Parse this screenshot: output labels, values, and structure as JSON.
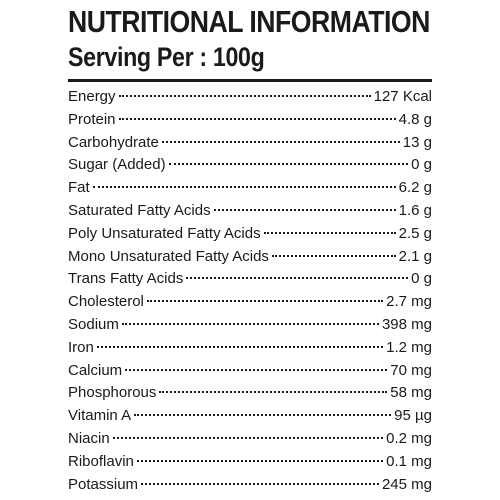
{
  "header": {
    "title": "NUTRITIONAL INFORMATION",
    "serving": "Serving Per : 100g"
  },
  "nutrients": [
    {
      "label": "Energy",
      "value": "127 Kcal"
    },
    {
      "label": "Protein",
      "value": "4.8 g"
    },
    {
      "label": "Carbohydrate",
      "value": "13 g"
    },
    {
      "label": "Sugar (Added)",
      "value": "0 g"
    },
    {
      "label": "Fat",
      "value": "6.2 g"
    },
    {
      "label": "Saturated Fatty Acids",
      "value": "1.6 g"
    },
    {
      "label": "Poly Unsaturated Fatty Acids",
      "value": "2.5 g"
    },
    {
      "label": "Mono Unsaturated Fatty Acids",
      "value": "2.1 g"
    },
    {
      "label": "Trans Fatty Acids",
      "value": "0 g"
    },
    {
      "label": "Cholesterol",
      "value": "2.7 mg"
    },
    {
      "label": "Sodium",
      "value": "398 mg"
    },
    {
      "label": "Iron",
      "value": "1.2 mg"
    },
    {
      "label": "Calcium",
      "value": "70 mg"
    },
    {
      "label": "Phosphorous",
      "value": "58 mg"
    },
    {
      "label": "Vitamin A",
      "value": "95 µg"
    },
    {
      "label": "Niacin",
      "value": "0.2 mg"
    },
    {
      "label": "Riboflavin",
      "value": "0.1 mg"
    },
    {
      "label": "Potassium",
      "value": "245 mg"
    }
  ]
}
